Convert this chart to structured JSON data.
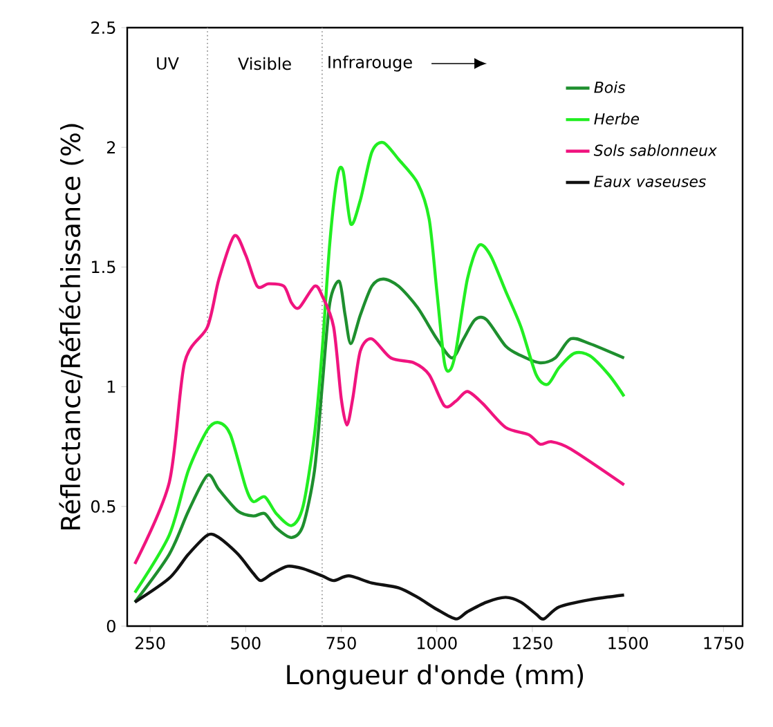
{
  "chart_data": {
    "type": "line",
    "xlabel": "Longueur d'onde (mm)",
    "ylabel": "Réflectance/Réfléchissance (%)",
    "xlim": [
      190,
      1800
    ],
    "ylim": [
      0,
      2.5
    ],
    "xticks": [
      250,
      500,
      750,
      1000,
      1250,
      1500,
      1750
    ],
    "yticks": [
      0,
      0.5,
      1,
      1.5,
      2,
      2.5
    ],
    "legend": "top right",
    "grid": false,
    "line_style": "solid",
    "marker": "none",
    "ref_lines": [
      {
        "axis": "x",
        "value": 400,
        "line_style": "dotted",
        "color": "#888888"
      },
      {
        "axis": "x",
        "value": 700,
        "line_style": "dotted",
        "color": "#888888"
      }
    ],
    "annotations": [
      "UV",
      "Visible",
      "Infrarouge"
    ],
    "series": [
      {
        "name": "Bois",
        "color": "#1e8f2e",
        "x": [
          210,
          300,
          350,
          400,
          430,
          480,
          520,
          550,
          580,
          620,
          650,
          680,
          700,
          720,
          745,
          760,
          775,
          800,
          830,
          860,
          900,
          950,
          1000,
          1040,
          1070,
          1100,
          1130,
          1180,
          1220,
          1270,
          1310,
          1350,
          1400,
          1490
        ],
        "values": [
          0.1,
          0.3,
          0.48,
          0.63,
          0.57,
          0.48,
          0.46,
          0.47,
          0.41,
          0.37,
          0.42,
          0.65,
          1.0,
          1.35,
          1.44,
          1.3,
          1.18,
          1.3,
          1.42,
          1.45,
          1.42,
          1.33,
          1.2,
          1.12,
          1.2,
          1.28,
          1.28,
          1.17,
          1.13,
          1.1,
          1.12,
          1.2,
          1.18,
          1.12
        ]
      },
      {
        "name": "Herbe",
        "color": "#22ee22",
        "x": [
          210,
          300,
          350,
          400,
          430,
          460,
          500,
          520,
          550,
          580,
          620,
          650,
          680,
          700,
          720,
          740,
          755,
          775,
          800,
          830,
          860,
          900,
          950,
          980,
          1000,
          1020,
          1035,
          1050,
          1080,
          1110,
          1140,
          1180,
          1220,
          1260,
          1290,
          1320,
          1360,
          1400,
          1450,
          1490
        ],
        "values": [
          0.14,
          0.38,
          0.65,
          0.82,
          0.85,
          0.8,
          0.58,
          0.52,
          0.54,
          0.47,
          0.42,
          0.5,
          0.8,
          1.15,
          1.6,
          1.88,
          1.9,
          1.68,
          1.78,
          1.98,
          2.02,
          1.95,
          1.85,
          1.7,
          1.4,
          1.1,
          1.07,
          1.15,
          1.45,
          1.59,
          1.55,
          1.4,
          1.25,
          1.05,
          1.01,
          1.08,
          1.14,
          1.13,
          1.05,
          0.96
        ]
      },
      {
        "name": "Sols sablonneux",
        "color": "#f0147f",
        "x": [
          210,
          300,
          340,
          400,
          430,
          470,
          500,
          530,
          560,
          600,
          620,
          640,
          680,
          700,
          730,
          750,
          765,
          780,
          800,
          830,
          880,
          940,
          980,
          1020,
          1050,
          1080,
          1120,
          1180,
          1240,
          1270,
          1300,
          1350,
          1490
        ],
        "values": [
          0.26,
          0.6,
          1.1,
          1.25,
          1.45,
          1.63,
          1.55,
          1.42,
          1.43,
          1.42,
          1.35,
          1.33,
          1.42,
          1.38,
          1.25,
          0.95,
          0.84,
          0.95,
          1.15,
          1.2,
          1.12,
          1.1,
          1.05,
          0.92,
          0.94,
          0.98,
          0.93,
          0.83,
          0.8,
          0.76,
          0.77,
          0.74,
          0.59
        ]
      },
      {
        "name": "Eaux vaseuses",
        "color": "#111111",
        "x": [
          210,
          300,
          350,
          400,
          430,
          480,
          520,
          540,
          570,
          610,
          650,
          700,
          730,
          770,
          830,
          900,
          950,
          1000,
          1050,
          1080,
          1130,
          1180,
          1220,
          1260,
          1280,
          1320,
          1400,
          1490
        ],
        "values": [
          0.1,
          0.2,
          0.3,
          0.38,
          0.37,
          0.3,
          0.22,
          0.19,
          0.22,
          0.25,
          0.24,
          0.21,
          0.19,
          0.21,
          0.18,
          0.16,
          0.12,
          0.07,
          0.03,
          0.06,
          0.1,
          0.12,
          0.1,
          0.05,
          0.03,
          0.08,
          0.11,
          0.13
        ]
      }
    ]
  }
}
